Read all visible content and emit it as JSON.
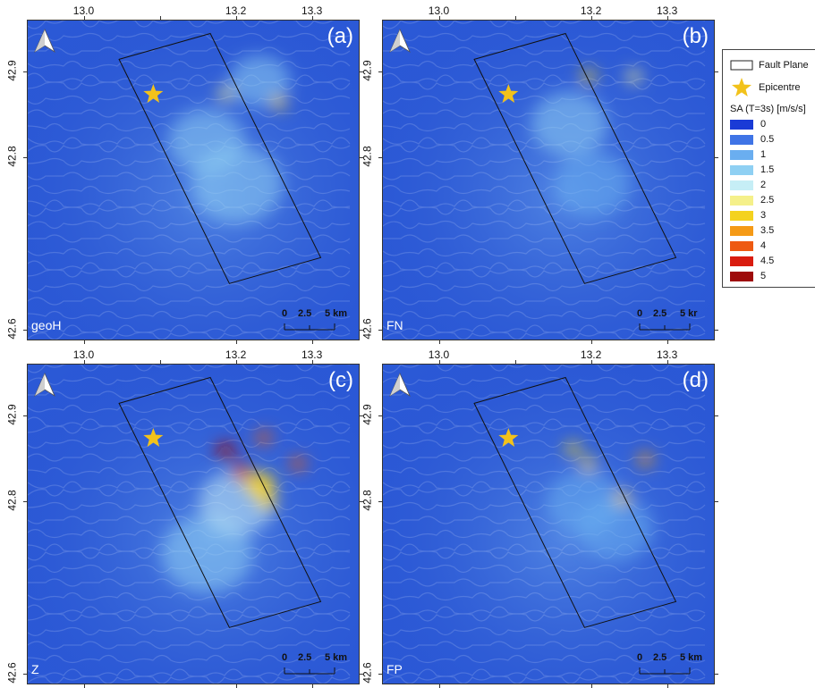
{
  "panels": [
    {
      "id": "a",
      "letter": "(a)",
      "component": "geoH",
      "hotspots": [
        {
          "lon": 13.185,
          "lat": 42.875,
          "level": 2.6,
          "size": 0.004
        },
        {
          "lon": 13.255,
          "lat": 42.865,
          "level": 3.0,
          "size": 0.006
        },
        {
          "lon": 13.16,
          "lat": 42.82,
          "level": 1.6,
          "size": 0.05
        },
        {
          "lon": 13.2,
          "lat": 42.77,
          "level": 1.4,
          "size": 0.06
        },
        {
          "lon": 13.23,
          "lat": 42.89,
          "level": 1.3,
          "size": 0.04
        }
      ]
    },
    {
      "id": "b",
      "letter": "(b)",
      "component": "FN",
      "hotspots": [
        {
          "lon": 13.195,
          "lat": 42.895,
          "level": 3.0,
          "size": 0.006
        },
        {
          "lon": 13.255,
          "lat": 42.895,
          "level": 2.5,
          "size": 0.004
        },
        {
          "lon": 13.17,
          "lat": 42.84,
          "level": 1.3,
          "size": 0.05
        },
        {
          "lon": 13.2,
          "lat": 42.77,
          "level": 1.1,
          "size": 0.05
        }
      ]
    },
    {
      "id": "c",
      "letter": "(c)",
      "component": "Z",
      "hotspots": [
        {
          "lon": 13.185,
          "lat": 42.86,
          "level": 4.8,
          "size": 0.012
        },
        {
          "lon": 13.205,
          "lat": 42.835,
          "level": 4.6,
          "size": 0.012
        },
        {
          "lon": 13.235,
          "lat": 42.875,
          "level": 3.9,
          "size": 0.008
        },
        {
          "lon": 13.28,
          "lat": 42.845,
          "level": 4.0,
          "size": 0.009
        },
        {
          "lon": 13.23,
          "lat": 42.82,
          "level": 3.0,
          "size": 0.02
        },
        {
          "lon": 13.24,
          "lat": 42.8,
          "level": 2.8,
          "size": 0.012
        },
        {
          "lon": 13.2,
          "lat": 42.8,
          "level": 2.0,
          "size": 0.05
        },
        {
          "lon": 13.16,
          "lat": 42.74,
          "level": 1.4,
          "size": 0.06
        }
      ]
    },
    {
      "id": "d",
      "letter": "(d)",
      "component": "FP",
      "hotspots": [
        {
          "lon": 13.175,
          "lat": 42.862,
          "level": 3.0,
          "size": 0.005
        },
        {
          "lon": 13.195,
          "lat": 42.845,
          "level": 3.0,
          "size": 0.005
        },
        {
          "lon": 13.27,
          "lat": 42.85,
          "level": 3.4,
          "size": 0.006
        },
        {
          "lon": 13.24,
          "lat": 42.805,
          "level": 2.8,
          "size": 0.006
        },
        {
          "lon": 13.19,
          "lat": 42.8,
          "level": 1.2,
          "size": 0.05
        },
        {
          "lon": 13.23,
          "lat": 42.77,
          "level": 1.0,
          "size": 0.05
        }
      ]
    }
  ],
  "map": {
    "lon_range": [
      12.925,
      13.36
    ],
    "lat_range": [
      42.59,
      42.96
    ],
    "lon_ticks": [
      "13.0",
      "13.2",
      "13.3"
    ],
    "lon_tick_values": [
      13.0,
      13.2,
      13.3
    ],
    "minor_lon_ticks": [
      13.1
    ],
    "lat_ticks": [
      "42.9",
      "42.8",
      "42.6"
    ],
    "lat_tick_values": [
      42.9,
      42.8,
      42.6
    ],
    "minor_lat_ticks": [
      42.7
    ],
    "fault_plane": [
      [
        13.045,
        42.915
      ],
      [
        13.165,
        42.945
      ],
      [
        13.31,
        42.685
      ],
      [
        13.19,
        42.655
      ]
    ],
    "epicentre": {
      "lon": 13.09,
      "lat": 42.875
    },
    "background_color": "#2b59d6"
  },
  "scalebar": {
    "zero": "0",
    "mid": "2.5",
    "end": "5 km",
    "end_clipped": "5 kr"
  },
  "legend": {
    "fault_plane_label": "Fault Plane",
    "epicentre_label": "Epicentre",
    "title": "SA (T=3s) [m/s/s]",
    "entries": [
      {
        "value": "0",
        "color": "#1a3bd6"
      },
      {
        "value": "0.5",
        "color": "#3f74e6"
      },
      {
        "value": "1",
        "color": "#6aaef0"
      },
      {
        "value": "1.5",
        "color": "#8fd0f3"
      },
      {
        "value": "2",
        "color": "#c6eef6"
      },
      {
        "value": "2.5",
        "color": "#f5f08a"
      },
      {
        "value": "3",
        "color": "#f4d21f"
      },
      {
        "value": "3.5",
        "color": "#f59a16"
      },
      {
        "value": "4",
        "color": "#ee5a12"
      },
      {
        "value": "4.5",
        "color": "#d91c0f"
      },
      {
        "value": "5",
        "color": "#9e0b0a"
      }
    ],
    "star_color": "#f2c21b"
  }
}
